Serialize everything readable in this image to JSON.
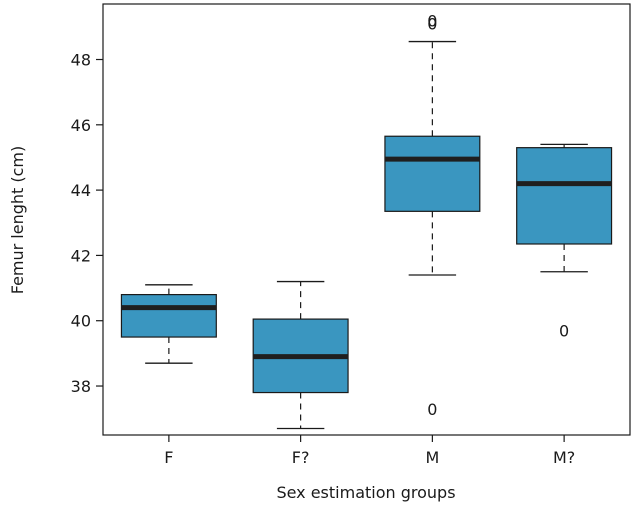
{
  "chart_data": {
    "type": "boxplot",
    "xlabel": "Sex estimation groups",
    "ylabel": "Femur lenght (cm)",
    "ylim": [
      36.5,
      49.7
    ],
    "yticks": [
      38,
      40,
      42,
      44,
      46,
      48
    ],
    "grid": false,
    "box_color": "#3a96c0",
    "outlier_symbol": "0",
    "categories": [
      "F",
      "F?",
      "M",
      "M?"
    ],
    "boxes": [
      {
        "category": "F",
        "whisker_low": 38.7,
        "q1": 39.5,
        "median": 40.4,
        "q3": 40.8,
        "whisker_high": 41.1,
        "outliers": []
      },
      {
        "category": "F?",
        "whisker_low": 36.7,
        "q1": 37.8,
        "median": 38.9,
        "q3": 40.05,
        "whisker_high": 41.2,
        "outliers": []
      },
      {
        "category": "M",
        "whisker_low": 41.4,
        "q1": 43.35,
        "median": 44.95,
        "q3": 45.65,
        "whisker_high": 48.55,
        "outliers": [
          37.3,
          49.1,
          49.2
        ]
      },
      {
        "category": "M?",
        "whisker_low": 41.5,
        "q1": 42.35,
        "median": 44.2,
        "q3": 45.3,
        "whisker_high": 45.4,
        "outliers": [
          39.7
        ]
      }
    ]
  }
}
